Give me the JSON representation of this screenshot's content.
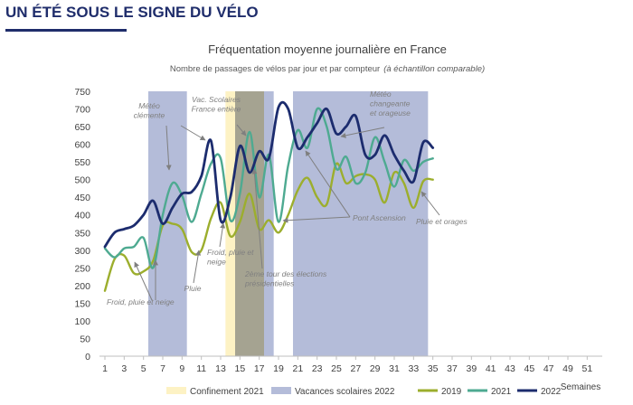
{
  "page": {
    "headline": "UN ÉTÉ SOUS LE SIGNE DU VÉLO"
  },
  "colors": {
    "headline": "#1f2d6b",
    "confinement": "#fdf2c4",
    "vacances": "#b4bcd9",
    "overlap": "#a5a391",
    "s2019": "#9cae2d",
    "s2021": "#4eaa91",
    "s2022": "#1c2c6e",
    "annotation": "#7f7f7f"
  },
  "chart_data": {
    "type": "line",
    "title": "Fréquentation moyenne journalière en France",
    "subtitle_main": "Nombre de passages de vélos par jour et par compteur",
    "subtitle_italic": "(à échantillon comparable)",
    "xlabel": "Semaines",
    "ylabel": "",
    "ylim": [
      0,
      750
    ],
    "xlim": [
      1,
      52
    ],
    "yticks": [
      0,
      50,
      100,
      150,
      200,
      250,
      300,
      350,
      400,
      450,
      500,
      550,
      600,
      650,
      700,
      750
    ],
    "xticks": [
      1,
      3,
      5,
      7,
      9,
      11,
      13,
      15,
      17,
      19,
      21,
      23,
      25,
      27,
      29,
      31,
      33,
      35,
      37,
      39,
      41,
      43,
      45,
      47,
      49,
      51
    ],
    "grid": false,
    "bands": [
      {
        "type": "vacances",
        "from": 5.5,
        "to": 9.5
      },
      {
        "type": "confinement",
        "from": 13.5,
        "to": 14.5
      },
      {
        "type": "overlap",
        "from": 14.5,
        "to": 17.5
      },
      {
        "type": "vacances",
        "from": 17.5,
        "to": 18.5
      },
      {
        "type": "vacances",
        "from": 20.5,
        "to": 34.5
      }
    ],
    "legend_position": "bottom",
    "legend": [
      {
        "label": "Confinement 2021",
        "kind": "box",
        "color": "#fdf2c4"
      },
      {
        "label": "Vacances scolaires 2022",
        "kind": "box",
        "color": "#b4bcd9"
      },
      {
        "label": "2019",
        "kind": "line",
        "color": "#9cae2d"
      },
      {
        "label": "2021",
        "kind": "line",
        "color": "#4eaa91"
      },
      {
        "label": "2022",
        "kind": "line",
        "color": "#1c2c6e"
      }
    ],
    "x": [
      1,
      2,
      3,
      4,
      5,
      6,
      7,
      8,
      9,
      10,
      11,
      12,
      13,
      14,
      15,
      16,
      17,
      18,
      19,
      20,
      21,
      22,
      23,
      24,
      25,
      26,
      27,
      28,
      29,
      30,
      31,
      32,
      33,
      34,
      35
    ],
    "series": [
      {
        "name": "2019",
        "color": "#9cae2d",
        "values": [
          185,
          275,
          285,
          235,
          240,
          270,
          370,
          375,
          360,
          295,
          300,
          390,
          435,
          340,
          380,
          460,
          360,
          385,
          350,
          400,
          470,
          505,
          450,
          430,
          545,
          490,
          510,
          515,
          500,
          435,
          520,
          490,
          420,
          495,
          500
        ]
      },
      {
        "name": "2021",
        "color": "#4eaa91",
        "values": [
          305,
          280,
          305,
          310,
          335,
          250,
          400,
          490,
          455,
          380,
          460,
          545,
          560,
          385,
          460,
          635,
          450,
          570,
          380,
          540,
          640,
          590,
          700,
          650,
          530,
          565,
          490,
          520,
          620,
          550,
          480,
          555,
          525,
          550,
          560
        ]
      },
      {
        "name": "2022",
        "color": "#1c2c6e",
        "values": [
          310,
          350,
          360,
          370,
          400,
          440,
          375,
          420,
          460,
          465,
          510,
          610,
          385,
          450,
          595,
          520,
          580,
          560,
          705,
          700,
          590,
          620,
          660,
          700,
          630,
          650,
          680,
          570,
          570,
          625,
          570,
          525,
          495,
          605,
          590
        ]
      }
    ],
    "annotations": [
      {
        "lines": [
          "Météo",
          "clémente"
        ],
        "x": 165,
        "y": 120,
        "anchor": "middle",
        "arrows": [
          [
            200,
            139,
            227,
            155
          ],
          [
            184,
            139,
            187,
            188
          ]
        ]
      },
      {
        "lines": [
          "Vac. Scolaires",
          "France entière"
        ],
        "x": 239,
        "y": 113,
        "anchor": "middle",
        "arrows": [
          [
            262,
            138,
            272,
            150
          ]
        ]
      },
      {
        "lines": [
          "Météo",
          "changeante",
          "et orageuse"
        ],
        "x": 409,
        "y": 107,
        "anchor": "start",
        "arrows": [
          [
            425,
            141,
            377,
            151
          ]
        ]
      },
      {
        "lines": [
          "Froid, pluie et neige"
        ],
        "x": 118,
        "y": 337,
        "anchor": "start",
        "arrows": [
          [
            168,
            332,
            149,
            290
          ],
          [
            172,
            332,
            172,
            288
          ]
        ]
      },
      {
        "lines": [
          "Pluie"
        ],
        "x": 213,
        "y": 322,
        "anchor": "middle",
        "arrows": [
          [
            214,
            313,
            220,
            277
          ]
        ]
      },
      {
        "lines": [
          "Froid, pluie et",
          "neige"
        ],
        "x": 229,
        "y": 282,
        "anchor": "start",
        "arrows": [
          [
            243,
            273,
            247,
            247
          ]
        ]
      },
      {
        "lines": [
          "2ème tour des élections",
          "présidentielles"
        ],
        "x": 271,
        "y": 306,
        "anchor": "start",
        "arrows": [
          [
            290,
            297,
            281,
            187
          ]
        ]
      },
      {
        "lines": [
          "Pont Ascension"
        ],
        "x": 390,
        "y": 244,
        "anchor": "start",
        "arrows": [
          [
            387,
            240,
            313,
            244
          ],
          [
            387,
            240,
            338,
            167
          ]
        ]
      },
      {
        "lines": [
          "Pluie et orages"
        ],
        "x": 460,
        "y": 248,
        "anchor": "start",
        "arrows": [
          [
            486,
            238,
            466,
            212
          ]
        ]
      }
    ]
  }
}
